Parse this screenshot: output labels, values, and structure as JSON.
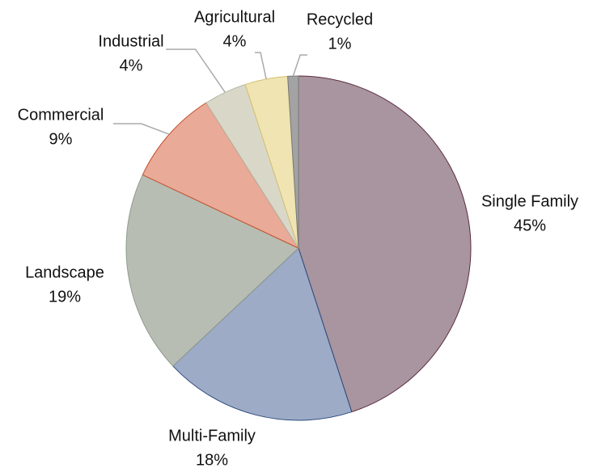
{
  "chart_data": {
    "type": "pie",
    "categories": [
      "Single Family",
      "Multi-Family",
      "Landscape",
      "Commercial",
      "Industrial",
      "Agricultural",
      "Recycled"
    ],
    "values": [
      45,
      18,
      19,
      9,
      4,
      4,
      1
    ],
    "value_labels": [
      "45%",
      "18%",
      "19%",
      "9%",
      "4%",
      "4%",
      "1%"
    ],
    "colors": [
      "#a8959f",
      "#9eabc6",
      "#b7bdb3",
      "#e9aa98",
      "#d9d8c8",
      "#efe4b2",
      "#a3a3a3"
    ]
  }
}
